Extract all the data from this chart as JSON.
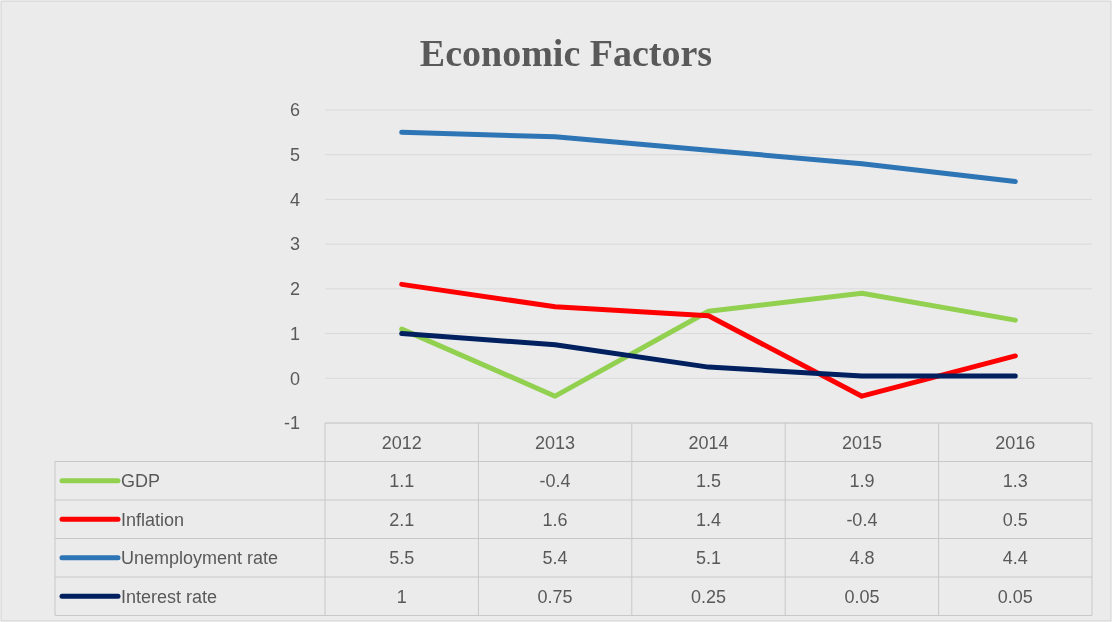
{
  "chart_data": {
    "type": "line",
    "title": "Economic Factors",
    "categories": [
      "2012",
      "2013",
      "2014",
      "2015",
      "2016"
    ],
    "series": [
      {
        "name": "GDP",
        "color": "#92d050",
        "values": [
          1.1,
          -0.4,
          1.5,
          1.9,
          1.3
        ]
      },
      {
        "name": "Inflation",
        "color": "#ff0000",
        "values": [
          2.1,
          1.6,
          1.4,
          -0.4,
          0.5
        ]
      },
      {
        "name": "Unemployment rate",
        "color": "#2e75b6",
        "values": [
          5.5,
          5.4,
          5.1,
          4.8,
          4.4
        ]
      },
      {
        "name": "Interest rate",
        "color": "#002060",
        "values": [
          1,
          0.75,
          0.25,
          0.05,
          0.05
        ]
      }
    ],
    "ylim": [
      -1,
      6
    ],
    "yticks": [
      -1,
      0,
      1,
      2,
      3,
      4,
      5,
      6
    ],
    "grid": "y",
    "data_labels": true,
    "legend": "bottom",
    "marker": "none",
    "line_style": "solid"
  }
}
